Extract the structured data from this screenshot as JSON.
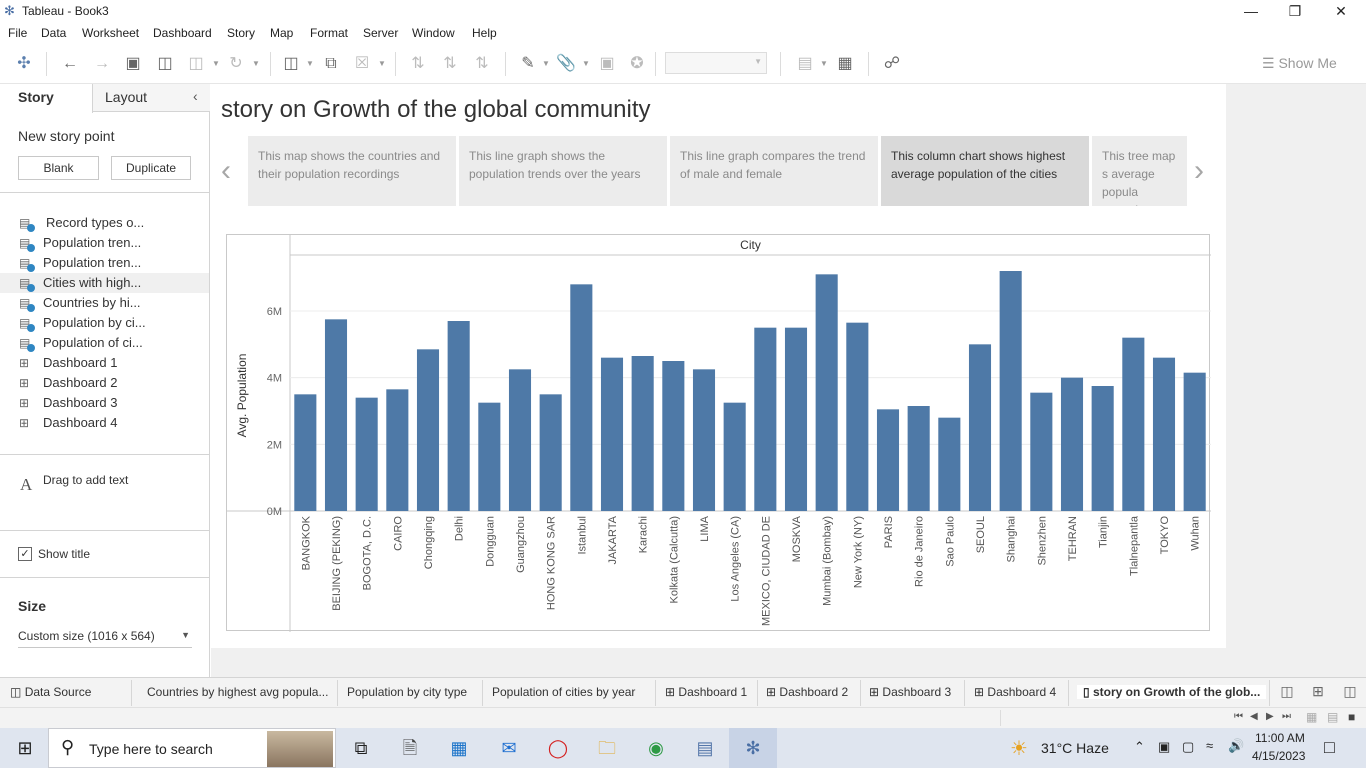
{
  "window": {
    "title": "Tableau - Book3"
  },
  "menu": [
    "File",
    "Data",
    "Worksheet",
    "Dashboard",
    "Story",
    "Map",
    "Format",
    "Server",
    "Window",
    "Help"
  ],
  "toolbar": {
    "show_me": "Show Me"
  },
  "left_panel": {
    "tabs": {
      "story": "Story",
      "layout": "Layout"
    },
    "new_story_point": "New story point",
    "blank_button": "Blank",
    "duplicate_button": "Duplicate",
    "sheets": [
      {
        "label": "Record types o...",
        "type": "worksheet"
      },
      {
        "label": "Population tren...",
        "type": "worksheet"
      },
      {
        "label": "Population tren...",
        "type": "worksheet"
      },
      {
        "label": "Cities with high...",
        "type": "worksheet"
      },
      {
        "label": "Countries by hi...",
        "type": "worksheet"
      },
      {
        "label": "Population by ci...",
        "type": "worksheet"
      },
      {
        "label": "Population of ci...",
        "type": "worksheet"
      },
      {
        "label": "Dashboard 1",
        "type": "dashboard"
      },
      {
        "label": "Dashboard 2",
        "type": "dashboard"
      },
      {
        "label": "Dashboard 3",
        "type": "dashboard"
      },
      {
        "label": "Dashboard 4",
        "type": "dashboard"
      }
    ],
    "drag_icon": "A",
    "drag_to_add_text": "Drag to add text",
    "show_title": "Show title",
    "size_heading": "Size",
    "size_value": "Custom size (1016 x 564)"
  },
  "story": {
    "title": "story on Growth of the global community",
    "captions": [
      "This map shows the countries and their population recordings",
      "This line graph shows the population trends over the years",
      "This line graph compares the trend of male and female",
      "This column chart shows highest average population of the cities",
      "This tree map s average popula countries"
    ],
    "selected_caption": 3
  },
  "chart_data": {
    "type": "bar",
    "column_header": "City",
    "ylabel": "Avg. Population",
    "yticks": [
      "0M",
      "2M",
      "4M",
      "6M"
    ],
    "ylim": [
      0,
      7500000
    ],
    "color": "#4e79a7",
    "categories": [
      "BANGKOK",
      "BEIJING (PEKING)",
      "BOGOTA, D.C.",
      "CAIRO",
      "Chongqing",
      "Delhi",
      "Dongguan",
      "Guangzhou",
      "HONG KONG SAR",
      "Istanbul",
      "JAKARTA",
      "Karachi",
      "Kolkata (Calcutta)",
      "LIMA",
      "Los Angeles (CA)",
      "MEXICO, CIUDAD DE",
      "MOSKVA",
      "Mumbai (Bombay)",
      "New York (NY)",
      "PARIS",
      "Rio de Janeiro",
      "Sao Paulo",
      "SEOUL",
      "Shanghai",
      "Shenzhen",
      "TEHRAN",
      "Tianjin",
      "Tlalnepantla",
      "TOKYO",
      "Wuhan"
    ],
    "values": [
      3500000,
      5750000,
      3400000,
      3650000,
      4850000,
      5700000,
      3250000,
      4250000,
      3500000,
      6800000,
      4600000,
      4650000,
      4500000,
      4250000,
      3250000,
      5500000,
      5500000,
      7100000,
      5650000,
      3050000,
      3150000,
      2800000,
      5000000,
      7200000,
      3550000,
      4000000,
      3750000,
      5200000,
      4600000,
      4150000
    ]
  },
  "sheet_tabs": [
    "Data Source",
    "Countries by highest avg popula...",
    "Population by city type",
    "Population of cities by year",
    "Dashboard 1",
    "Dashboard 2",
    "Dashboard 3",
    "Dashboard 4",
    "story on Growth of the glob..."
  ],
  "taskbar": {
    "search_placeholder": "Type here to search",
    "weather": "31°C  Haze",
    "time": "11:00 AM",
    "date": "4/15/2023"
  }
}
